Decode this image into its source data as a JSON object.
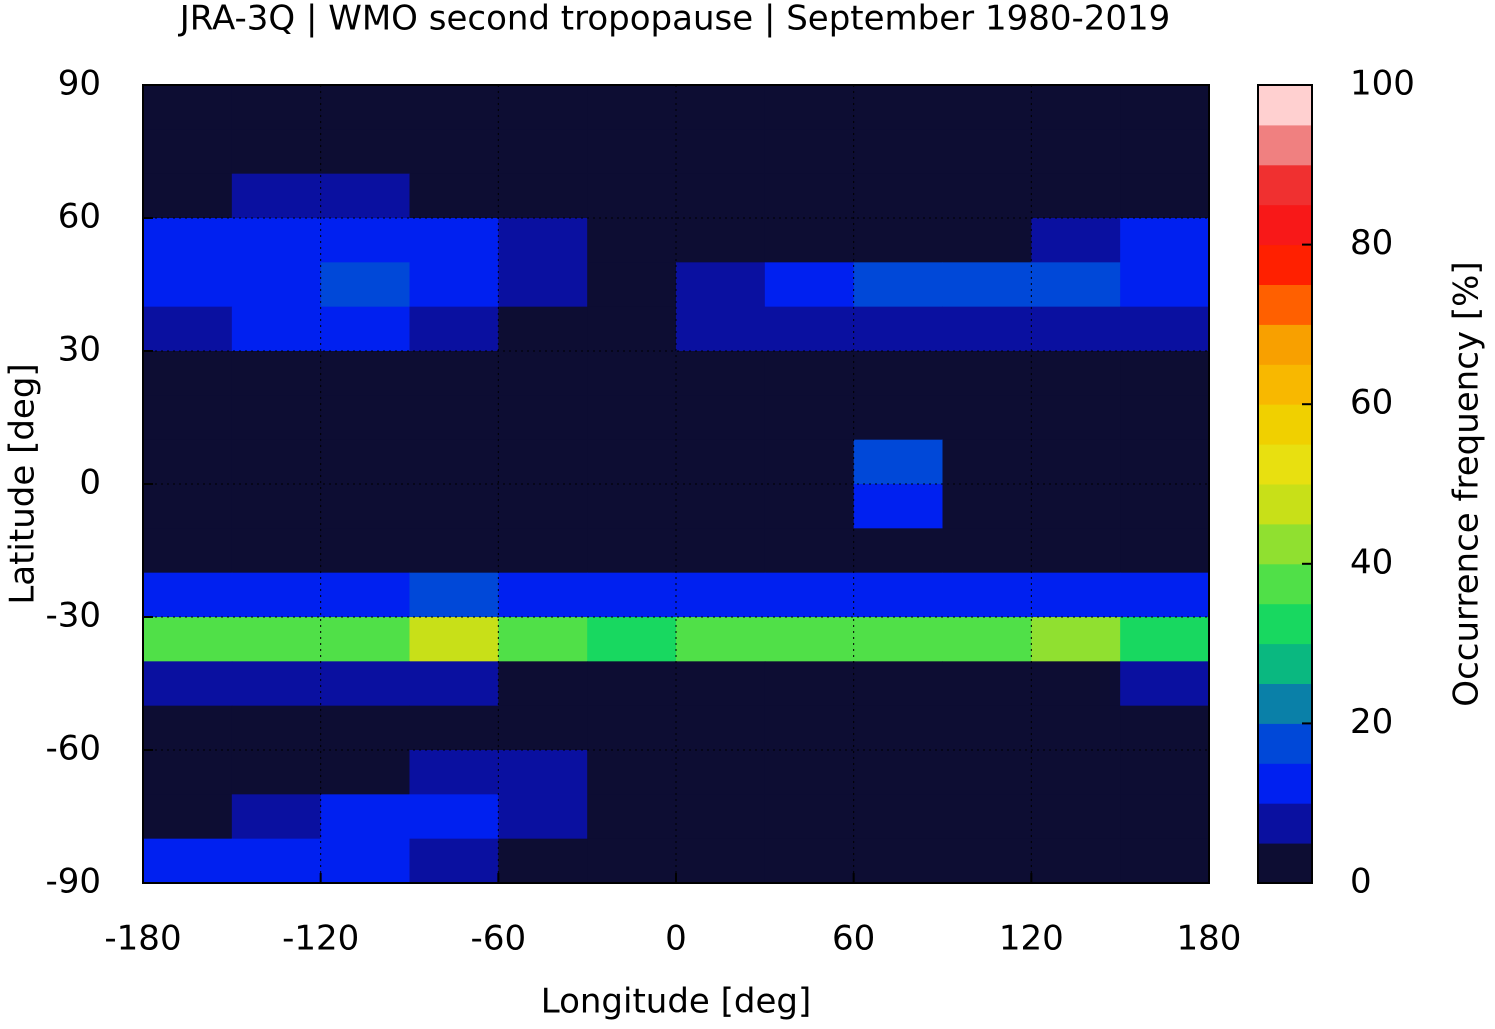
{
  "chart_data": {
    "type": "heatmap",
    "title": "JRA-3Q | WMO second tropopause | September 1980-2019",
    "xlabel": "Longitude [deg]",
    "ylabel": "Latitude [deg]",
    "colorbar_label": "Occurrence frequency [%]",
    "xlim": [
      -180,
      180
    ],
    "xticks": [
      -180,
      -120,
      -60,
      0,
      60,
      120,
      180
    ],
    "ylim": [
      -90,
      90
    ],
    "yticks": [
      -90,
      -60,
      -30,
      0,
      30,
      60,
      90
    ],
    "clim": [
      0,
      100
    ],
    "cticks": [
      0,
      20,
      40,
      60,
      80,
      100
    ],
    "levels": [
      0,
      5,
      10,
      15,
      20,
      25,
      30,
      35,
      40,
      45,
      50,
      55,
      60,
      65,
      70,
      75,
      80,
      85,
      90,
      95,
      100
    ],
    "colors": [
      "#0d0d33",
      "#0a10a0",
      "#0020f0",
      "#0048d8",
      "#0a80a8",
      "#0ab880",
      "#18d860",
      "#50e048",
      "#90e030",
      "#c8e018",
      "#e8e010",
      "#f0d000",
      "#f8b800",
      "#f8a000",
      "#ff6000",
      "#ff2000",
      "#f81818",
      "#f03030",
      "#f08080",
      "#ffd0d0"
    ],
    "grid": true,
    "lon": [
      -165,
      -135,
      -105,
      -75,
      -45,
      -15,
      15,
      45,
      75,
      105,
      135,
      165
    ],
    "lat": [
      85,
      75,
      65,
      55,
      45,
      35,
      25,
      15,
      5,
      -5,
      -15,
      -25,
      -35,
      -45,
      -55,
      -65,
      -75,
      -85
    ],
    "values": [
      [
        0,
        0,
        0,
        0,
        0,
        0,
        0,
        0,
        0,
        0,
        0,
        0
      ],
      [
        0,
        0,
        0,
        0,
        0,
        0,
        0,
        0,
        0,
        0,
        0,
        0
      ],
      [
        0,
        5,
        5,
        0,
        0,
        0,
        0,
        0,
        0,
        0,
        0,
        0
      ],
      [
        10,
        10,
        10,
        10,
        5,
        0,
        0,
        0,
        0,
        0,
        5,
        10
      ],
      [
        10,
        10,
        15,
        10,
        5,
        0,
        5,
        10,
        15,
        15,
        15,
        10
      ],
      [
        5,
        10,
        10,
        5,
        0,
        0,
        5,
        5,
        5,
        5,
        5,
        5
      ],
      [
        0,
        0,
        0,
        0,
        0,
        0,
        0,
        0,
        0,
        0,
        0,
        0
      ],
      [
        0,
        0,
        0,
        0,
        0,
        0,
        0,
        0,
        0,
        0,
        0,
        0
      ],
      [
        0,
        0,
        0,
        0,
        0,
        0,
        0,
        0,
        15,
        0,
        0,
        0
      ],
      [
        0,
        0,
        0,
        0,
        0,
        0,
        0,
        0,
        10,
        0,
        0,
        0
      ],
      [
        0,
        0,
        0,
        0,
        0,
        0,
        0,
        0,
        0,
        0,
        0,
        0
      ],
      [
        10,
        10,
        10,
        15,
        10,
        10,
        10,
        10,
        10,
        10,
        10,
        10
      ],
      [
        35,
        35,
        35,
        45,
        35,
        30,
        35,
        35,
        35,
        35,
        40,
        30
      ],
      [
        5,
        5,
        5,
        5,
        0,
        0,
        0,
        0,
        0,
        0,
        0,
        5
      ],
      [
        0,
        0,
        0,
        0,
        0,
        0,
        0,
        0,
        0,
        0,
        0,
        0
      ],
      [
        0,
        0,
        0,
        5,
        5,
        0,
        0,
        0,
        0,
        0,
        0,
        0
      ],
      [
        0,
        5,
        10,
        10,
        5,
        0,
        0,
        0,
        0,
        0,
        0,
        0
      ],
      [
        10,
        10,
        10,
        5,
        0,
        0,
        0,
        0,
        0,
        0,
        0,
        0
      ]
    ]
  }
}
